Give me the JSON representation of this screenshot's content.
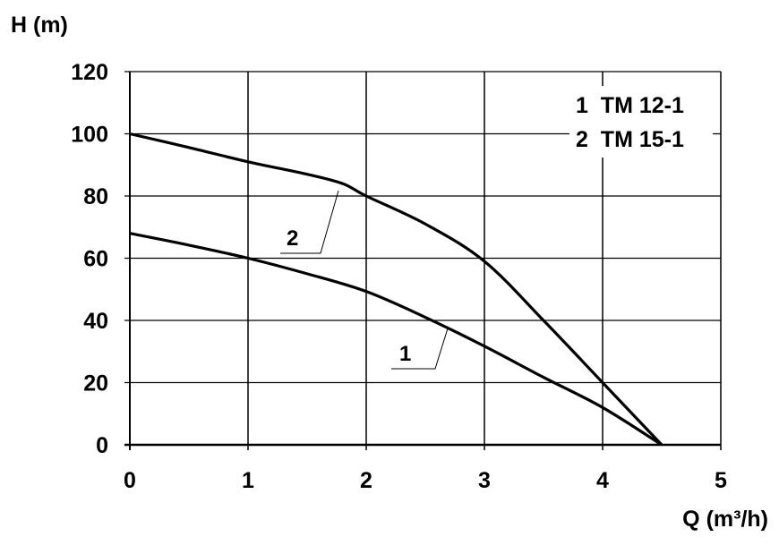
{
  "chart_data": {
    "type": "line",
    "title": "",
    "xlabel": "Q (m³/h)",
    "ylabel": "H (m)",
    "xlim": [
      0,
      5
    ],
    "ylim": [
      0,
      120
    ],
    "xticks": [
      0,
      1,
      2,
      3,
      4,
      5
    ],
    "yticks": [
      0,
      20,
      40,
      60,
      80,
      100,
      120
    ],
    "grid": true,
    "legend": {
      "placement": "top-right",
      "entries": [
        "1  TM 12-1",
        "2  TM 15-1"
      ]
    },
    "series": [
      {
        "name": "1",
        "x": [
          0,
          0.5,
          1,
          1.5,
          2,
          2.5,
          3,
          3.5,
          4,
          4.5
        ],
        "y": [
          68,
          64.2,
          60,
          55,
          49.3,
          41,
          31.7,
          21.7,
          12,
          0
        ]
      },
      {
        "name": "2",
        "x": [
          0,
          0.5,
          1,
          1.5,
          1.8,
          2,
          2.5,
          3,
          3.5,
          4,
          4.5
        ],
        "y": [
          100,
          95.6,
          91,
          87,
          84,
          80,
          71,
          59,
          40,
          20,
          0
        ]
      }
    ],
    "annotations": [
      {
        "text": "1",
        "points_to_series": "1"
      },
      {
        "text": "2",
        "points_to_series": "2"
      }
    ],
    "line_color": "#000000"
  }
}
